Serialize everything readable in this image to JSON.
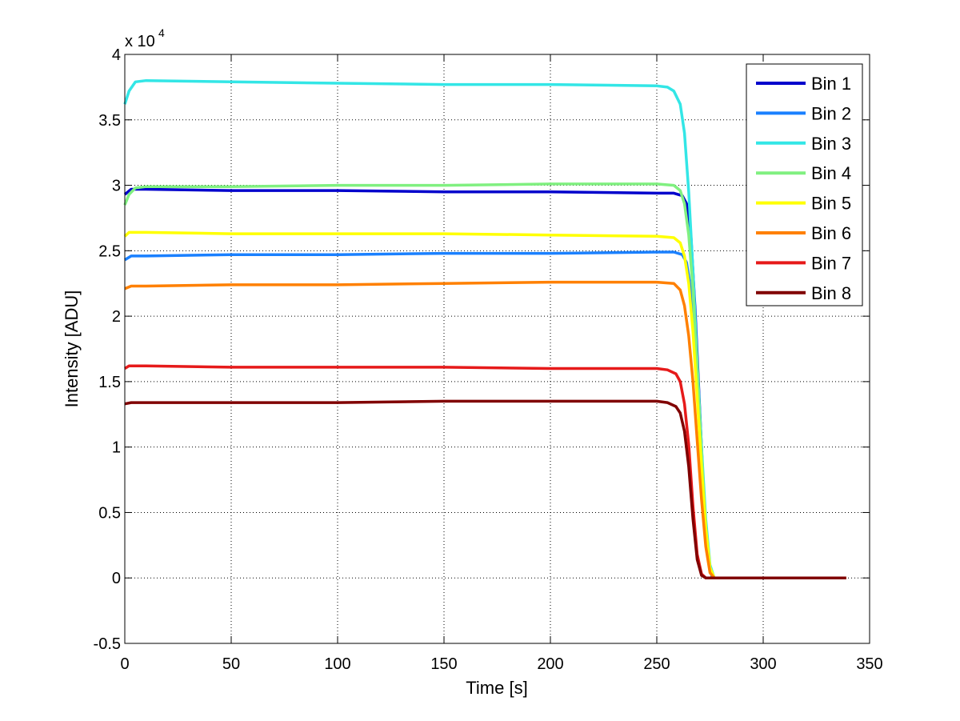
{
  "chart_data": {
    "type": "line",
    "xlabel": "Time [s]",
    "ylabel": "Intensity [ADU]",
    "y_multiplier_label": "x 10",
    "y_multiplier_exponent": "4",
    "xlim": [
      0,
      350
    ],
    "ylim": [
      -0.5,
      4
    ],
    "x_ticks": [
      "0",
      "50",
      "100",
      "150",
      "200",
      "250",
      "300",
      "350"
    ],
    "y_ticks": [
      "-0.5",
      "0",
      "0.5",
      "1",
      "1.5",
      "2",
      "2.5",
      "3",
      "3.5",
      "4"
    ],
    "grid": true,
    "legend_position": "top-right",
    "series": [
      {
        "name": "Bin 1",
        "color": "#0000cc",
        "points": [
          [
            0,
            2.93
          ],
          [
            3,
            2.97
          ],
          [
            10,
            2.97
          ],
          [
            50,
            2.96
          ],
          [
            100,
            2.96
          ],
          [
            150,
            2.95
          ],
          [
            200,
            2.95
          ],
          [
            250,
            2.94
          ],
          [
            258,
            2.94
          ],
          [
            262,
            2.92
          ],
          [
            264,
            2.86
          ],
          [
            266,
            2.62
          ],
          [
            268,
            2.05
          ],
          [
            270,
            1.35
          ],
          [
            272,
            0.65
          ],
          [
            274,
            0.18
          ],
          [
            276,
            0
          ],
          [
            300,
            0
          ],
          [
            339,
            0
          ]
        ]
      },
      {
        "name": "Bin 2",
        "color": "#1a80ff",
        "points": [
          [
            0,
            2.43
          ],
          [
            3,
            2.46
          ],
          [
            10,
            2.46
          ],
          [
            50,
            2.47
          ],
          [
            100,
            2.47
          ],
          [
            150,
            2.48
          ],
          [
            200,
            2.48
          ],
          [
            250,
            2.49
          ],
          [
            258,
            2.49
          ],
          [
            262,
            2.47
          ],
          [
            264,
            2.41
          ],
          [
            266,
            2.2
          ],
          [
            268,
            1.75
          ],
          [
            270,
            1.15
          ],
          [
            272,
            0.58
          ],
          [
            274,
            0.18
          ],
          [
            276,
            0
          ],
          [
            300,
            0
          ],
          [
            339,
            0
          ]
        ]
      },
      {
        "name": "Bin 3",
        "color": "#33e6e6",
        "points": [
          [
            0,
            3.62
          ],
          [
            2,
            3.72
          ],
          [
            5,
            3.79
          ],
          [
            10,
            3.8
          ],
          [
            50,
            3.79
          ],
          [
            100,
            3.78
          ],
          [
            150,
            3.77
          ],
          [
            200,
            3.77
          ],
          [
            250,
            3.76
          ],
          [
            255,
            3.75
          ],
          [
            258,
            3.72
          ],
          [
            261,
            3.62
          ],
          [
            263,
            3.4
          ],
          [
            265,
            2.95
          ],
          [
            267,
            2.35
          ],
          [
            269,
            1.65
          ],
          [
            271,
            1
          ],
          [
            273,
            0.45
          ],
          [
            275,
            0.1
          ],
          [
            277,
            0
          ],
          [
            300,
            0
          ],
          [
            339,
            0
          ]
        ]
      },
      {
        "name": "Bin 4",
        "color": "#80f080",
        "points": [
          [
            0,
            2.85
          ],
          [
            2,
            2.93
          ],
          [
            5,
            2.98
          ],
          [
            10,
            2.99
          ],
          [
            50,
            2.99
          ],
          [
            100,
            3.0
          ],
          [
            150,
            3.0
          ],
          [
            200,
            3.01
          ],
          [
            250,
            3.01
          ],
          [
            258,
            3.0
          ],
          [
            261,
            2.96
          ],
          [
            263,
            2.86
          ],
          [
            265,
            2.62
          ],
          [
            267,
            2.2
          ],
          [
            269,
            1.6
          ],
          [
            271,
            0.95
          ],
          [
            273,
            0.4
          ],
          [
            275,
            0.08
          ],
          [
            277,
            0
          ],
          [
            300,
            0
          ],
          [
            339,
            0
          ]
        ]
      },
      {
        "name": "Bin 5",
        "color": "#ffff00",
        "points": [
          [
            0,
            2.61
          ],
          [
            2,
            2.64
          ],
          [
            10,
            2.64
          ],
          [
            50,
            2.63
          ],
          [
            100,
            2.63
          ],
          [
            150,
            2.63
          ],
          [
            200,
            2.62
          ],
          [
            250,
            2.61
          ],
          [
            258,
            2.6
          ],
          [
            261,
            2.56
          ],
          [
            263,
            2.46
          ],
          [
            265,
            2.25
          ],
          [
            267,
            1.88
          ],
          [
            269,
            1.38
          ],
          [
            271,
            0.85
          ],
          [
            273,
            0.38
          ],
          [
            275,
            0.08
          ],
          [
            277,
            0
          ],
          [
            300,
            0
          ],
          [
            339,
            0
          ]
        ]
      },
      {
        "name": "Bin 6",
        "color": "#ff8000",
        "points": [
          [
            0,
            2.21
          ],
          [
            3,
            2.23
          ],
          [
            10,
            2.23
          ],
          [
            50,
            2.24
          ],
          [
            100,
            2.24
          ],
          [
            150,
            2.25
          ],
          [
            200,
            2.26
          ],
          [
            250,
            2.26
          ],
          [
            258,
            2.25
          ],
          [
            261,
            2.2
          ],
          [
            263,
            2.08
          ],
          [
            265,
            1.85
          ],
          [
            267,
            1.5
          ],
          [
            269,
            1.05
          ],
          [
            271,
            0.6
          ],
          [
            273,
            0.24
          ],
          [
            275,
            0.04
          ],
          [
            277,
            0
          ],
          [
            300,
            0
          ],
          [
            339,
            0
          ]
        ]
      },
      {
        "name": "Bin 7",
        "color": "#e61a1a",
        "points": [
          [
            0,
            1.6
          ],
          [
            2,
            1.62
          ],
          [
            10,
            1.62
          ],
          [
            50,
            1.61
          ],
          [
            100,
            1.61
          ],
          [
            150,
            1.61
          ],
          [
            200,
            1.6
          ],
          [
            250,
            1.6
          ],
          [
            255,
            1.59
          ],
          [
            259,
            1.56
          ],
          [
            261,
            1.5
          ],
          [
            263,
            1.33
          ],
          [
            265,
            1.02
          ],
          [
            267,
            0.55
          ],
          [
            269,
            0.18
          ],
          [
            271,
            0.03
          ],
          [
            273,
            0
          ],
          [
            300,
            0
          ],
          [
            339,
            0
          ]
        ]
      },
      {
        "name": "Bin 8",
        "color": "#800000",
        "points": [
          [
            0,
            1.33
          ],
          [
            3,
            1.34
          ],
          [
            10,
            1.34
          ],
          [
            50,
            1.34
          ],
          [
            100,
            1.34
          ],
          [
            150,
            1.35
          ],
          [
            200,
            1.35
          ],
          [
            250,
            1.35
          ],
          [
            255,
            1.34
          ],
          [
            259,
            1.31
          ],
          [
            261,
            1.26
          ],
          [
            263,
            1.12
          ],
          [
            265,
            0.85
          ],
          [
            267,
            0.45
          ],
          [
            269,
            0.14
          ],
          [
            271,
            0.02
          ],
          [
            273,
            0
          ],
          [
            300,
            0
          ],
          [
            339,
            0
          ]
        ]
      }
    ]
  }
}
